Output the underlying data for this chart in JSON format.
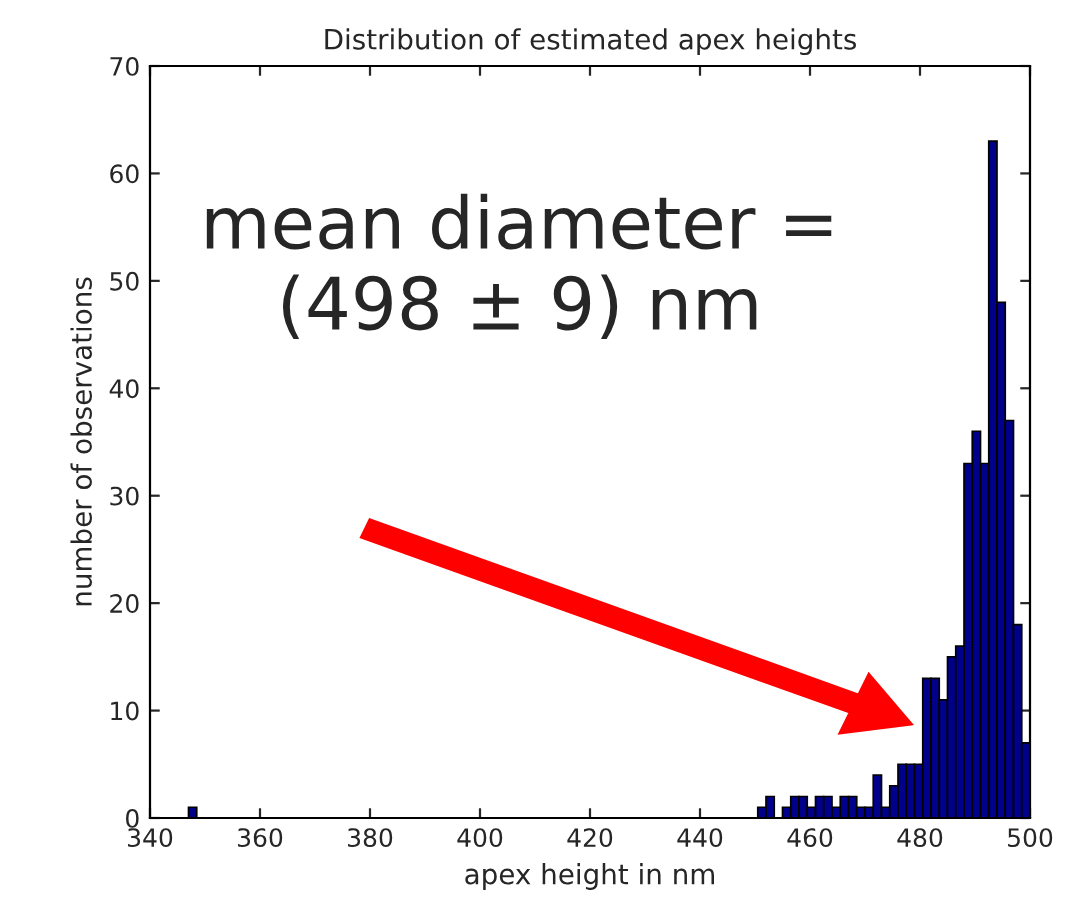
{
  "chart_data": {
    "type": "histogram",
    "title": "Distribution of estimated apex heights",
    "xlabel": "apex height in nm",
    "ylabel": "number of observations",
    "annotations": [
      "mean diameter =\n(498 ± 9) nm"
    ],
    "color": "#00008b",
    "bins": [
      347,
      348.5,
      350,
      351.5,
      353,
      354.5,
      356,
      357.5,
      359,
      360.5,
      362,
      363.5,
      365,
      366.5,
      368,
      369.5,
      371,
      372.5,
      374,
      375.5,
      377,
      378.5,
      380,
      381.5,
      383,
      384.5,
      386,
      387.5,
      389,
      390.5,
      392,
      393.5,
      395,
      396.5,
      398,
      399.5,
      401,
      402.5,
      404,
      405.5,
      407,
      408.5,
      410,
      411.5,
      413,
      414.5,
      416,
      417.5,
      419,
      420.5,
      422,
      423.5,
      425,
      426.5,
      428,
      429.5,
      431,
      432.5,
      434,
      435.5,
      437,
      438.5,
      440,
      441.5,
      443,
      444.5,
      446,
      447.5,
      449,
      450.5,
      452,
      453.5,
      455,
      456.5,
      458,
      459.5,
      461,
      462.5,
      464,
      465.5,
      467,
      468.5,
      470,
      471.5,
      473,
      474.5,
      476,
      477.5,
      479,
      480.5,
      482,
      483.5,
      485,
      486.5,
      488,
      489.5,
      491,
      492.5,
      494,
      495.5,
      497,
      498.5,
      500
    ],
    "values": [
      1,
      0,
      0,
      0,
      0,
      0,
      0,
      0,
      0,
      0,
      0,
      0,
      0,
      0,
      0,
      0,
      0,
      0,
      0,
      0,
      0,
      0,
      0,
      0,
      0,
      0,
      0,
      0,
      0,
      0,
      0,
      0,
      0,
      0,
      0,
      0,
      0,
      0,
      0,
      0,
      0,
      0,
      0,
      0,
      0,
      0,
      0,
      0,
      0,
      0,
      0,
      0,
      0,
      0,
      0,
      0,
      0,
      0,
      0,
      0,
      0,
      0,
      0,
      0,
      0,
      0,
      0,
      0,
      0,
      1,
      2,
      0,
      1,
      2,
      2,
      1,
      2,
      2,
      1,
      2,
      2,
      1,
      1,
      4,
      1,
      3,
      5,
      5,
      5,
      13,
      13,
      11,
      15,
      16,
      33,
      36,
      33,
      63,
      48,
      37,
      18,
      7
    ],
    "xlim": [
      340,
      500
    ],
    "ylim": [
      0,
      70
    ],
    "xticks": [
      340,
      360,
      380,
      400,
      420,
      440,
      460,
      480,
      500
    ],
    "yticks": [
      0,
      10,
      20,
      30,
      40,
      50,
      60,
      70
    ],
    "grid": false
  }
}
